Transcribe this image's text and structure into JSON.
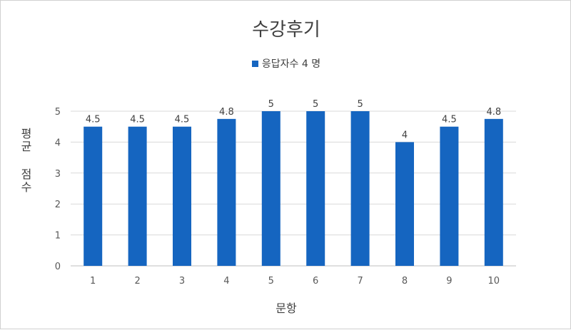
{
  "chart_data": {
    "type": "bar",
    "title": "수강후기",
    "xlabel": "문항",
    "ylabel": "평균 점수",
    "categories": [
      "1",
      "2",
      "3",
      "4",
      "5",
      "6",
      "7",
      "8",
      "9",
      "10"
    ],
    "series": [
      {
        "name": "응답자수 4 명",
        "values": [
          4.5,
          4.5,
          4.5,
          4.75,
          5,
          5,
          5,
          4,
          4.5,
          4.75
        ],
        "labels": [
          "4.5",
          "4.5",
          "4.5",
          "4.8",
          "5",
          "5",
          "5",
          "4",
          "4.5",
          "4.8"
        ],
        "color": "#1565C0"
      }
    ],
    "ylim": [
      0,
      5
    ],
    "yticks": [
      "0",
      "1",
      "2",
      "3",
      "4",
      "5"
    ],
    "grid": true,
    "legend_position": "top"
  }
}
